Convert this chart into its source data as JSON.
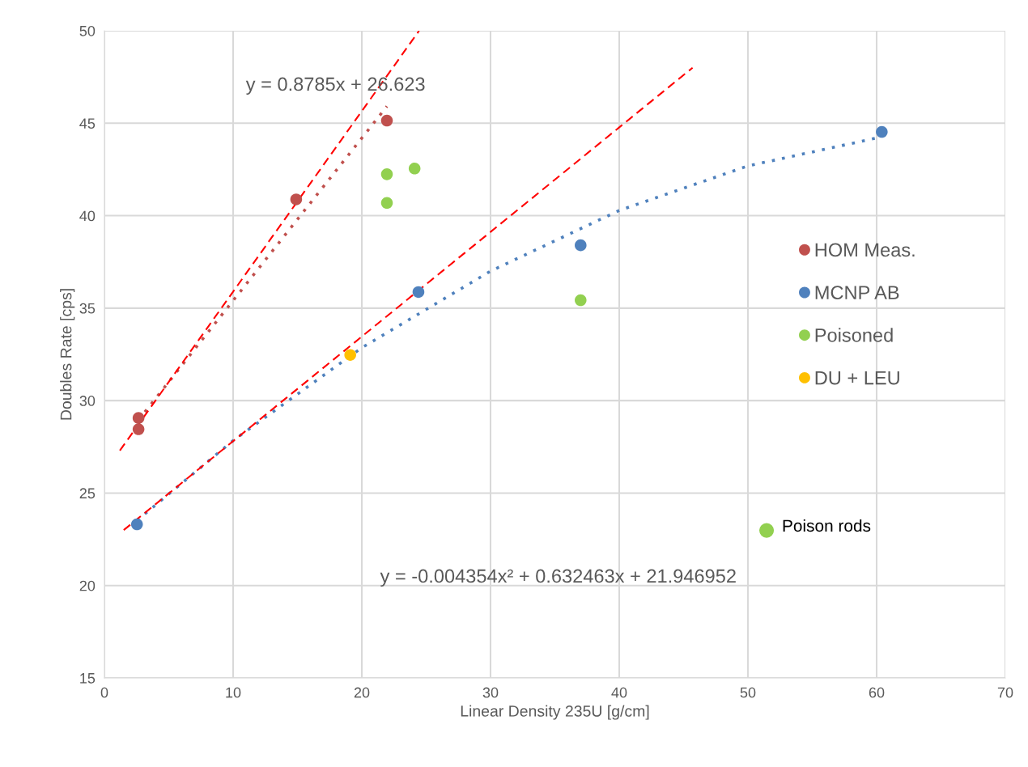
{
  "chart_data": {
    "type": "scatter",
    "xlabel": "Linear Density 235U [g/cm]",
    "ylabel": "Doubles Rate [cps]",
    "xlim": [
      0,
      70
    ],
    "xticks": [
      0,
      10,
      20,
      30,
      40,
      50,
      60,
      70
    ],
    "ylim": [
      15,
      50
    ],
    "yticks": [
      15,
      20,
      25,
      30,
      35,
      40,
      45,
      50
    ],
    "grid": true,
    "legend": "right",
    "marker": "circle",
    "series": [
      {
        "name": "HOM Meas.",
        "color": "#c0504d",
        "x": [
          2.65,
          2.65,
          14.9,
          21.95
        ],
        "values": [
          29.06,
          28.45,
          40.88,
          45.14
        ]
      },
      {
        "name": "MCNP AB",
        "color": "#4f81bd",
        "x": [
          2.53,
          24.4,
          37.0,
          60.4
        ],
        "values": [
          23.31,
          35.87,
          38.4,
          44.53
        ]
      },
      {
        "name": "Poisoned",
        "color": "#92d050",
        "x": [
          21.95,
          24.1,
          21.95,
          37.0
        ],
        "values": [
          42.24,
          42.55,
          40.69,
          35.43
        ]
      },
      {
        "name": "DU + LEU",
        "color": "#ffc000",
        "x": [
          19.1
        ],
        "values": [
          32.47
        ]
      },
      {
        "type": "line",
        "marker": "none",
        "line_style": "dotted",
        "color": "#c0504d",
        "x": [
          2.65,
          21.95
        ],
        "values": [
          28.95,
          45.91
        ]
      },
      {
        "type": "line",
        "marker": "none",
        "line_style": "dotted",
        "color": "#4f81bd",
        "x": [
          2.53,
          10,
          20,
          30,
          40,
          50,
          60.4
        ],
        "values": [
          23.52,
          27.84,
          32.86,
          37.0,
          40.28,
          42.69,
          44.26
        ]
      },
      {
        "type": "line",
        "marker": "none",
        "line_style": "dashed",
        "color": "#ff0000",
        "x": [
          1.2,
          24.45
        ],
        "values": [
          27.3,
          50.0
        ]
      },
      {
        "type": "line",
        "marker": "none",
        "line_style": "dashed",
        "color": "#ff0000",
        "x": [
          1.5,
          45.7
        ],
        "values": [
          23.0,
          48.0
        ]
      }
    ],
    "annotations": [
      "y = 0.8785x + 26.623",
      "y = -0.004354x² + 0.632463x + 21.946952",
      "Poison rods"
    ]
  }
}
